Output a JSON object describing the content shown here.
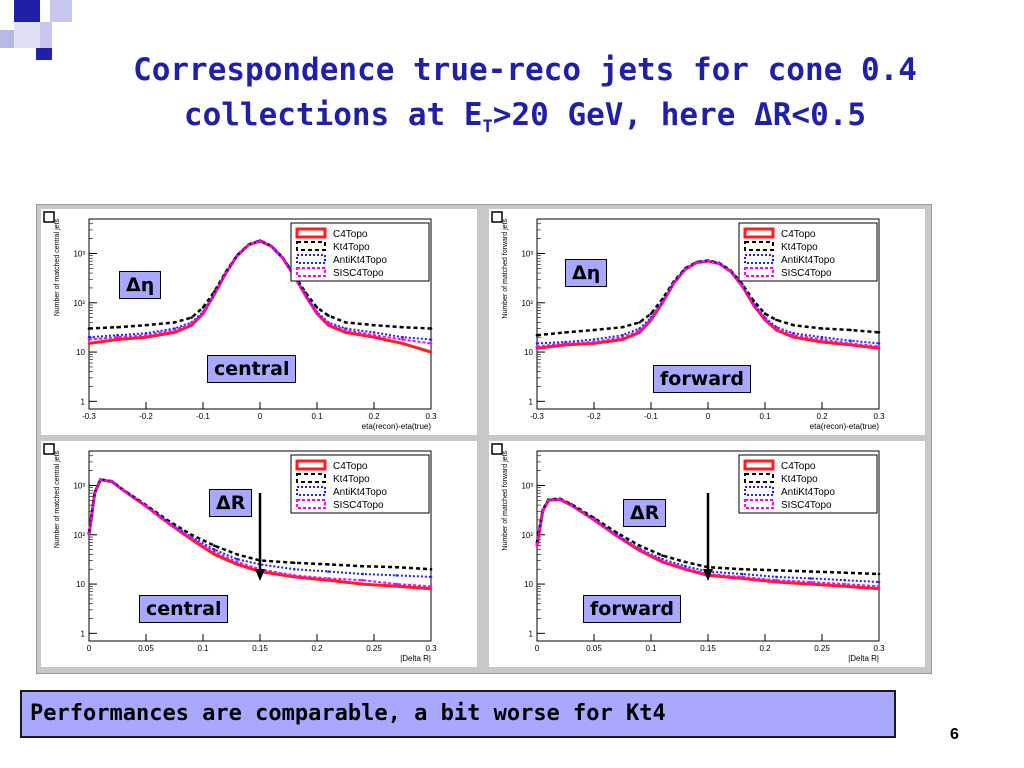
{
  "slide": {
    "title_line1": "Correspondence true-reco jets for cone 0.4",
    "title_line2_pre": "collections at E",
    "title_line2_sub": "T",
    "title_line2_post": ">20 GeV, here ΔR<0.5",
    "footer": "Performances are comparable, a bit worse for Kt4",
    "page_number": "6",
    "accent_color": "#1f1fa8",
    "tag_color": "#a9a8ff"
  },
  "chart_data": [
    {
      "type": "line",
      "panel": "top-left",
      "variable_tag": "Δη",
      "region_tag": "central",
      "ylabel": "Number of matched central jets",
      "xlabel": "eta(recon)-eta(true)",
      "log_y": true,
      "xlim": [
        -0.3,
        0.3
      ],
      "ylim": [
        0.7,
        5000
      ],
      "x_ticks": [
        "-0.3",
        "-0.2",
        "-0.1",
        "0",
        "0.1",
        "0.2",
        "0.3"
      ],
      "y_ticks": [
        "1",
        "10",
        "10²",
        "10³"
      ],
      "legend_position": "top-right",
      "x": [
        -0.3,
        -0.25,
        -0.2,
        -0.15,
        -0.12,
        -0.1,
        -0.08,
        -0.06,
        -0.04,
        -0.02,
        0,
        0.02,
        0.04,
        0.06,
        0.08,
        0.1,
        0.12,
        0.15,
        0.2,
        0.25,
        0.3
      ],
      "series": [
        {
          "name": "C4Topo",
          "color": "#ff1e1e",
          "values": [
            15,
            18,
            20,
            25,
            35,
            60,
            150,
            400,
            900,
            1500,
            1800,
            1400,
            800,
            350,
            140,
            60,
            35,
            25,
            20,
            15,
            10
          ]
        },
        {
          "name": "Kt4Topo",
          "color": "#000000",
          "values": [
            30,
            32,
            35,
            40,
            50,
            80,
            170,
            420,
            920,
            1520,
            1820,
            1420,
            820,
            370,
            160,
            80,
            55,
            40,
            35,
            32,
            30
          ]
        },
        {
          "name": "AntiKt4Topo",
          "color": "#2020ff",
          "values": [
            20,
            22,
            24,
            30,
            40,
            65,
            155,
            405,
            905,
            1505,
            1805,
            1405,
            805,
            355,
            145,
            65,
            40,
            30,
            25,
            20,
            18
          ]
        },
        {
          "name": "SISC4Topo",
          "color": "#ff00ff",
          "values": [
            18,
            20,
            22,
            28,
            38,
            62,
            152,
            402,
            902,
            1502,
            1802,
            1402,
            802,
            352,
            142,
            62,
            38,
            28,
            22,
            18,
            15
          ]
        }
      ]
    },
    {
      "type": "line",
      "panel": "top-right",
      "variable_tag": "Δη",
      "region_tag": "forward",
      "ylabel": "Number of matched forward jets",
      "xlabel": "eta(recon)-eta(true)",
      "log_y": true,
      "xlim": [
        -0.3,
        0.3
      ],
      "ylim": [
        0.7,
        5000
      ],
      "x_ticks": [
        "-0.3",
        "-0.2",
        "-0.1",
        "0",
        "0.1",
        "0.2",
        "0.3"
      ],
      "y_ticks": [
        "1",
        "10",
        "10²",
        "10³"
      ],
      "legend_position": "top-right",
      "x": [
        -0.3,
        -0.25,
        -0.2,
        -0.15,
        -0.12,
        -0.1,
        -0.08,
        -0.06,
        -0.04,
        -0.02,
        0,
        0.02,
        0.04,
        0.06,
        0.08,
        0.1,
        0.12,
        0.15,
        0.2,
        0.25,
        0.3
      ],
      "series": [
        {
          "name": "C4Topo",
          "color": "#ff1e1e",
          "values": [
            12,
            14,
            15,
            18,
            25,
            45,
            100,
            250,
            480,
            650,
            700,
            620,
            430,
            220,
            90,
            45,
            28,
            20,
            16,
            14,
            12
          ]
        },
        {
          "name": "Kt4Topo",
          "color": "#000000",
          "values": [
            22,
            25,
            28,
            32,
            40,
            60,
            120,
            270,
            500,
            670,
            720,
            640,
            450,
            240,
            110,
            60,
            45,
            35,
            30,
            28,
            25
          ]
        },
        {
          "name": "AntiKt4Topo",
          "color": "#2020ff",
          "values": [
            15,
            16,
            18,
            22,
            30,
            50,
            105,
            255,
            485,
            655,
            705,
            625,
            435,
            225,
            95,
            50,
            32,
            24,
            20,
            17,
            15
          ]
        },
        {
          "name": "SISC4Topo",
          "color": "#ff00ff",
          "values": [
            13,
            15,
            16,
            20,
            27,
            47,
            102,
            252,
            482,
            652,
            702,
            622,
            432,
            222,
            92,
            47,
            30,
            22,
            18,
            15,
            13
          ]
        }
      ]
    },
    {
      "type": "line",
      "panel": "bottom-left",
      "variable_tag": "ΔR",
      "region_tag": "central",
      "ylabel": "Number of matched central jets",
      "xlabel": "|Delta R|",
      "log_y": true,
      "xlim": [
        0,
        0.3
      ],
      "ylim": [
        0.7,
        5000
      ],
      "x_ticks": [
        "0",
        "0.05",
        "0.1",
        "0.15",
        "0.2",
        "0.25",
        "0.3"
      ],
      "y_ticks": [
        "1",
        "10",
        "10²",
        "10³"
      ],
      "legend_position": "top-right",
      "arrow_at_x": 0.15,
      "x": [
        0,
        0.005,
        0.01,
        0.02,
        0.03,
        0.05,
        0.07,
        0.09,
        0.11,
        0.13,
        0.15,
        0.18,
        0.21,
        0.24,
        0.27,
        0.3
      ],
      "series": [
        {
          "name": "C4Topo",
          "color": "#ff1e1e",
          "values": [
            100,
            700,
            1300,
            1200,
            800,
            380,
            170,
            80,
            40,
            25,
            18,
            14,
            12,
            10,
            9,
            8
          ]
        },
        {
          "name": "Kt4Topo",
          "color": "#000000",
          "values": [
            110,
            720,
            1320,
            1220,
            820,
            400,
            190,
            100,
            60,
            40,
            30,
            27,
            25,
            23,
            22,
            20
          ]
        },
        {
          "name": "AntiKt4Topo",
          "color": "#2020ff",
          "values": [
            105,
            710,
            1310,
            1210,
            810,
            390,
            180,
            90,
            50,
            32,
            25,
            20,
            18,
            16,
            15,
            14
          ]
        },
        {
          "name": "SISC4Topo",
          "color": "#ff00ff",
          "values": [
            102,
            705,
            1305,
            1205,
            805,
            385,
            175,
            85,
            45,
            28,
            20,
            15,
            13,
            12,
            10,
            9
          ]
        }
      ]
    },
    {
      "type": "line",
      "panel": "bottom-right",
      "variable_tag": "ΔR",
      "region_tag": "forward",
      "ylabel": "Number of matched forward jets",
      "xlabel": "|Delta R|",
      "log_y": true,
      "xlim": [
        0,
        0.3
      ],
      "ylim": [
        0.7,
        5000
      ],
      "x_ticks": [
        "0",
        "0.05",
        "0.1",
        "0.15",
        "0.2",
        "0.25",
        "0.3"
      ],
      "y_ticks": [
        "1",
        "10",
        "10²",
        "10³"
      ],
      "legend_position": "top-right",
      "arrow_at_x": 0.15,
      "x": [
        0,
        0.005,
        0.01,
        0.02,
        0.03,
        0.05,
        0.07,
        0.09,
        0.11,
        0.13,
        0.15,
        0.18,
        0.21,
        0.24,
        0.27,
        0.3
      ],
      "series": [
        {
          "name": "C4Topo",
          "color": "#ff1e1e",
          "values": [
            60,
            300,
            500,
            520,
            400,
            200,
            95,
            48,
            28,
            20,
            15,
            13,
            11,
            10,
            9,
            8
          ]
        },
        {
          "name": "Kt4Topo",
          "color": "#000000",
          "values": [
            70,
            320,
            520,
            540,
            420,
            220,
            110,
            60,
            38,
            28,
            22,
            20,
            19,
            18,
            17,
            16
          ]
        },
        {
          "name": "AntiKt4Topo",
          "color": "#2020ff",
          "values": [
            65,
            310,
            510,
            530,
            410,
            210,
            100,
            52,
            32,
            23,
            18,
            16,
            14,
            13,
            12,
            11
          ]
        },
        {
          "name": "SISC4Topo",
          "color": "#ff00ff",
          "values": [
            62,
            305,
            505,
            525,
            405,
            205,
            97,
            50,
            30,
            21,
            16,
            14,
            12,
            11,
            10,
            9
          ]
        }
      ]
    }
  ]
}
